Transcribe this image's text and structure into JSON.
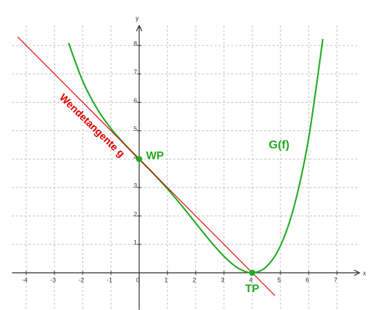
{
  "chart_data": {
    "type": "function-plot",
    "x_label": "x",
    "y_label": "y",
    "xlim": [
      -4.5,
      7.8
    ],
    "ylim": [
      -1.3,
      8.7
    ],
    "xticks": [
      -4,
      -3,
      -2,
      -1,
      0,
      1,
      2,
      3,
      4,
      5,
      6,
      7
    ],
    "yticks": [
      1,
      2,
      3,
      4,
      5,
      6,
      7,
      8
    ],
    "grid": true,
    "series": [
      {
        "name": "G(f)",
        "color": "#22aa22",
        "x": [
          -2.5,
          -2,
          -1.5,
          -1,
          -0.5,
          0,
          0.5,
          1,
          1.5,
          2,
          2.5,
          3,
          3.5,
          4,
          4.5,
          5,
          5.5,
          6,
          6.5
        ],
        "values": [
          8.087,
          6.75,
          5.79,
          5.078,
          4.509,
          4,
          3.493,
          2.953,
          2.368,
          1.75,
          1.134,
          0.578,
          0.165,
          0,
          0.212,
          0.953,
          2.4,
          4.75,
          8.228
        ]
      },
      {
        "name": "Wendetangente g",
        "color": "#dd0000",
        "x": [
          -4.3,
          4.8
        ],
        "values": [
          8.3,
          -0.8
        ]
      }
    ],
    "points": [
      {
        "label": "WP",
        "x": 0,
        "y": 4,
        "color": "#22aa22"
      },
      {
        "label": "TP",
        "x": 4,
        "y": 0,
        "color": "#22aa22"
      }
    ]
  }
}
